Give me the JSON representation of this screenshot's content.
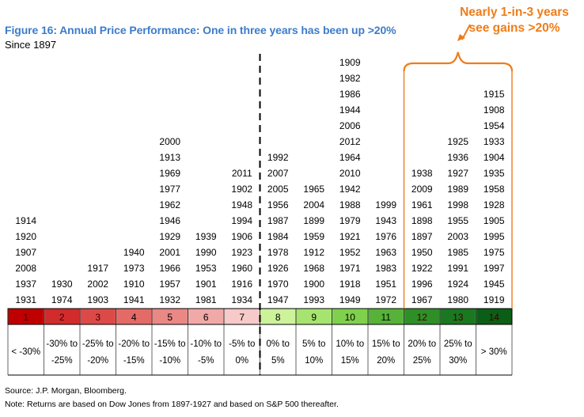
{
  "title": "Figure 16: Annual Price Performance: One in three years has been up >20%",
  "subtitle": "Since 1897",
  "callout": {
    "line1": "Nearly 1-in-3 years",
    "line2": "see gains >20%"
  },
  "chart_data": {
    "type": "table",
    "title": "Figure 16: Annual Price Performance: One in three years has been up >20%",
    "subtitle": "Since 1897",
    "xlabel": "Annual price return range",
    "ylabel": "Years",
    "bins": [
      {
        "bin": "1",
        "range": [
          "< -30%"
        ],
        "color": "#c00000",
        "years": [
          "1931",
          "1937",
          "2008",
          "1907",
          "1920",
          "1914"
        ]
      },
      {
        "bin": "2",
        "range": [
          "-30% to",
          "-25%"
        ],
        "color": "#d22b2b",
        "years": [
          "1974",
          "1930"
        ]
      },
      {
        "bin": "3",
        "range": [
          "-25% to",
          "-20%"
        ],
        "color": "#dc4a48",
        "years": [
          "1903",
          "2002",
          "1917"
        ]
      },
      {
        "bin": "4",
        "range": [
          "-20% to",
          "-15%"
        ],
        "color": "#e46a67",
        "years": [
          "1941",
          "1910",
          "1973",
          "1940"
        ]
      },
      {
        "bin": "5",
        "range": [
          "-15% to",
          "-10%"
        ],
        "color": "#ea8886",
        "years": [
          "1932",
          "1957",
          "1966",
          "2001",
          "1929",
          "1946",
          "1962",
          "1977",
          "1969",
          "1913",
          "2000"
        ]
      },
      {
        "bin": "6",
        "range": [
          "-10% to",
          "-5%"
        ],
        "color": "#f0a9a7",
        "years": [
          "1981",
          "1901",
          "1953",
          "1990",
          "1939"
        ]
      },
      {
        "bin": "7",
        "range": [
          "-5% to",
          "0%"
        ],
        "color": "#f6cac9",
        "years": [
          "1934",
          "1916",
          "1960",
          "1923",
          "1906",
          "1994",
          "1948",
          "1902",
          "2011"
        ]
      },
      {
        "bin": "8",
        "range": [
          "0% to",
          "5%"
        ],
        "color": "#ccf29a",
        "years": [
          "1947",
          "1970",
          "1926",
          "1978",
          "1984",
          "1987",
          "1956",
          "2005",
          "2007",
          "1992"
        ]
      },
      {
        "bin": "9",
        "range": [
          "5% to",
          "10%"
        ],
        "color": "#a6e46f",
        "years": [
          "1993",
          "1900",
          "1968",
          "1912",
          "1959",
          "1899",
          "2004",
          "1965"
        ]
      },
      {
        "bin": "10",
        "range": [
          "10% to",
          "15%"
        ],
        "color": "#7fd04d",
        "years": [
          "1949",
          "1918",
          "1971",
          "1952",
          "1921",
          "1979",
          "1988",
          "1942",
          "2010",
          "1964",
          "2012",
          "2006",
          "1944",
          "1986",
          "1982",
          "1909"
        ]
      },
      {
        "bin": "11",
        "range": [
          "15% to",
          "20%"
        ],
        "color": "#56b238",
        "years": [
          "1972",
          "1951",
          "1983",
          "1963",
          "1976",
          "1943",
          "1999"
        ]
      },
      {
        "bin": "12",
        "range": [
          "20% to",
          "25%"
        ],
        "color": "#2f8f27",
        "years": [
          "1967",
          "1996",
          "1922",
          "1950",
          "1897",
          "1898",
          "1961",
          "2009",
          "1938"
        ]
      },
      {
        "bin": "13",
        "range": [
          "25% to",
          "30%"
        ],
        "color": "#1a7820",
        "years": [
          "1980",
          "1924",
          "1991",
          "1985",
          "2003",
          "1955",
          "1998",
          "1989",
          "1927",
          "1936",
          "1925"
        ]
      },
      {
        "bin": "14",
        "range": [
          "> 30%"
        ],
        "color": "#0b5e16",
        "years": [
          "1919",
          "1945",
          "1997",
          "1975",
          "1995",
          "1905",
          "1928",
          "1958",
          "1935",
          "1904",
          "1933",
          "1954",
          "1908",
          "1915"
        ]
      }
    ],
    "highlight": {
      "from_bin": "12",
      "to_bin": "14",
      "label": "Nearly 1-in-3 years see gains >20%"
    },
    "divider_after_bin": "7"
  },
  "footnotes": {
    "source": "Source: J.P. Morgan, Bloomberg.",
    "note": "Note: Returns are based on Dow Jones from 1897-1927 and based on S&P 500 thereafter."
  }
}
